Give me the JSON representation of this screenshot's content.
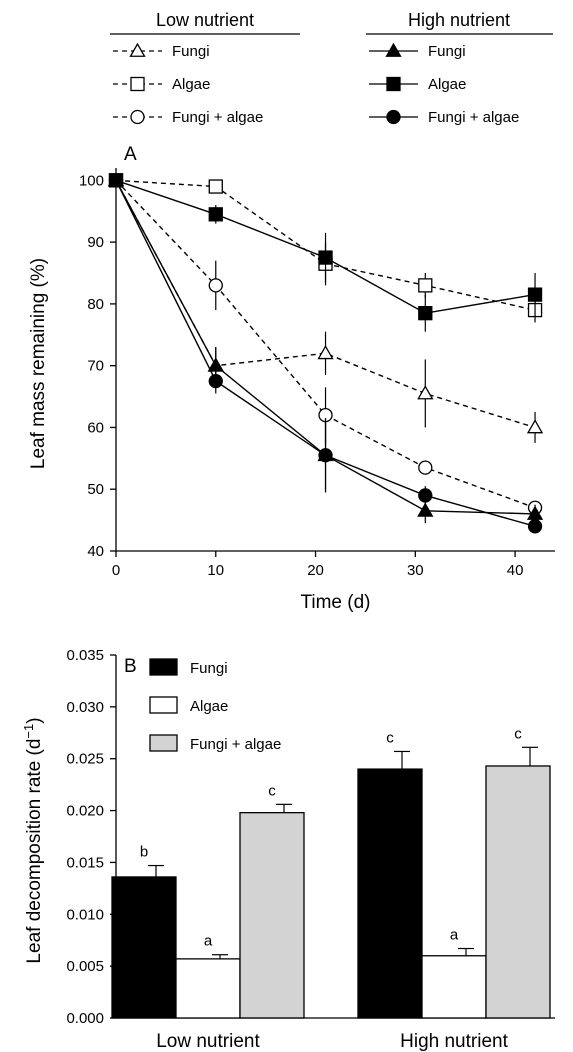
{
  "chart_data": [
    {
      "type": "line",
      "panel_label": "A",
      "xlabel": "Time (d)",
      "ylabel": "Leaf mass remaining (%)",
      "xlim": [
        0,
        44
      ],
      "ylim": [
        40,
        102
      ],
      "xticks": [
        0,
        10,
        20,
        30,
        40
      ],
      "yticks": [
        40,
        50,
        60,
        70,
        80,
        90,
        100
      ],
      "x": [
        0,
        10,
        21,
        31,
        42
      ],
      "legend_groups": [
        {
          "heading": "Low nutrient",
          "line": "dashed",
          "fill": "open"
        },
        {
          "heading": "High nutrient",
          "line": "solid",
          "fill": "filled"
        }
      ],
      "series": [
        {
          "name": "Fungi",
          "group": "Low nutrient",
          "marker": "triangle",
          "line": "dashed",
          "fill": "open",
          "values": [
            100,
            70.0,
            72.0,
            65.5,
            60.0
          ],
          "errors": [
            0,
            3.0,
            3.5,
            5.5,
            2.5
          ]
        },
        {
          "name": "Algae",
          "group": "Low nutrient",
          "marker": "square",
          "line": "dashed",
          "fill": "open",
          "values": [
            100,
            99.0,
            86.5,
            83.0,
            79.0
          ],
          "errors": [
            0,
            0.6,
            3.5,
            2.0,
            2.0
          ]
        },
        {
          "name": "Fungi + algae",
          "group": "Low nutrient",
          "marker": "circle",
          "line": "dashed",
          "fill": "open",
          "values": [
            100,
            83.0,
            62.0,
            53.5,
            47.0
          ],
          "errors": [
            0,
            4.0,
            4.5,
            1.0,
            1.0
          ]
        },
        {
          "name": "Fungi",
          "group": "High nutrient",
          "marker": "triangle",
          "line": "solid",
          "fill": "filled",
          "values": [
            100,
            70.0,
            55.5,
            46.5,
            46.0
          ],
          "errors": [
            0,
            3.0,
            6.0,
            2.0,
            1.5
          ]
        },
        {
          "name": "Algae",
          "group": "High nutrient",
          "marker": "square",
          "line": "solid",
          "fill": "filled",
          "values": [
            100,
            94.5,
            87.5,
            78.5,
            81.5
          ],
          "errors": [
            0,
            1.5,
            4.0,
            3.0,
            3.5
          ]
        },
        {
          "name": "Fungi + algae",
          "group": "High nutrient",
          "marker": "circle",
          "line": "solid",
          "fill": "filled",
          "values": [
            100,
            67.5,
            55.5,
            49.0,
            44.0
          ],
          "errors": [
            0,
            2.0,
            6.0,
            1.5,
            1.0
          ]
        }
      ]
    },
    {
      "type": "bar",
      "panel_label": "B",
      "xlabel": "",
      "ylabel": "Leaf decomposition rate (d",
      "ylabel_sup": "−1",
      "ylabel_end": ")",
      "ylim": [
        0,
        0.035
      ],
      "yticks": [
        "0.000",
        "0.005",
        "0.010",
        "0.015",
        "0.020",
        "0.025",
        "0.030",
        "0.035"
      ],
      "categories": [
        "Low nutrient",
        "High nutrient"
      ],
      "legend_position": "top-left",
      "series": [
        {
          "name": "Fungi",
          "color": "#000000",
          "values": [
            0.0136,
            0.024
          ],
          "errors": [
            0.0011,
            0.0017
          ],
          "letters": [
            "b",
            "c"
          ]
        },
        {
          "name": "Algae",
          "color": "#ffffff",
          "values": [
            0.0057,
            0.006
          ],
          "errors": [
            0.0004,
            0.0007
          ],
          "letters": [
            "a",
            "a"
          ]
        },
        {
          "name": "Fungi + algae",
          "color": "#d3d3d3",
          "values": [
            0.0198,
            0.0243
          ],
          "errors": [
            0.0008,
            0.0018
          ],
          "letters": [
            "c",
            "c"
          ]
        }
      ]
    }
  ]
}
